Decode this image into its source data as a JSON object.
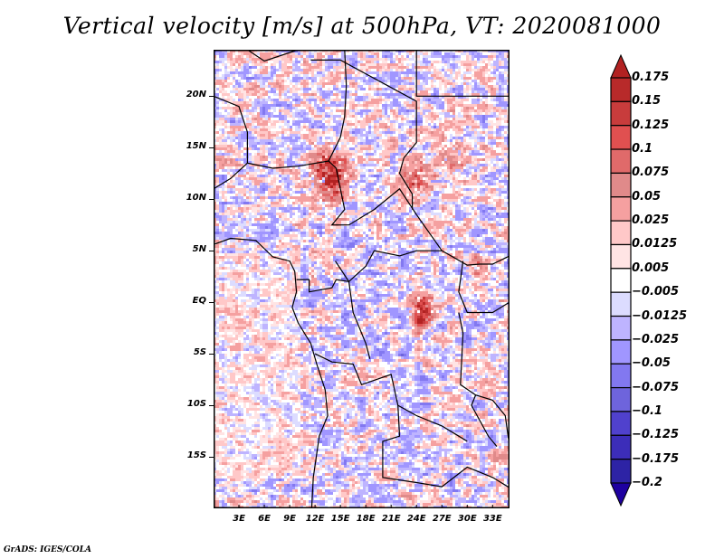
{
  "title": "Vertical velocity [m/s] at 500hPa, VT: 2020081000",
  "credit": "GrADS: IGES/COLA",
  "map": {
    "projection": "latlon",
    "lon_range": [
      0,
      35
    ],
    "lat_range": [
      -20,
      24.5
    ],
    "lat_ticks": [
      "20N",
      "15N",
      "10N",
      "5N",
      "EQ",
      "5S",
      "10S",
      "15S"
    ],
    "lat_values": [
      20,
      15,
      10,
      5,
      0,
      -5,
      -10,
      -15
    ],
    "lon_ticks": [
      "3E",
      "6E",
      "9E",
      "12E",
      "15E",
      "18E",
      "21E",
      "24E",
      "27E",
      "30E",
      "33E"
    ],
    "lon_values": [
      3,
      6,
      9,
      12,
      15,
      18,
      21,
      24,
      27,
      30,
      33
    ],
    "field": "vertical velocity at 500hPa",
    "units": "m/s",
    "valid_time": "2020081000",
    "features": {
      "strong_positive_regions": [
        "Lake Chad area (~14E, 12N)",
        "Darfur (~24E, 12N)",
        "Eastern DRC (~25E, 0)",
        "East Africa highlands (~30E, 4N)"
      ],
      "land_boundaries": "country borders and coastlines in black"
    }
  },
  "colorbar": {
    "labels": [
      "0.175",
      "0.15",
      "0.125",
      "0.1",
      "0.075",
      "0.05",
      "0.025",
      "0.0125",
      "0.005",
      "−0.005",
      "−0.0125",
      "−0.025",
      "−0.05",
      "−0.075",
      "−0.1",
      "−0.125",
      "−0.175",
      "−0.2"
    ],
    "colors": [
      "#b22222",
      "#b82a2a",
      "#c83c3c",
      "#e05050",
      "#e06a6a",
      "#e08a8a",
      "#f5a0a0",
      "#ffc8c8",
      "#ffe4e4",
      "#ffffff",
      "#dcdcff",
      "#beb4ff",
      "#a096ff",
      "#8278f0",
      "#6e64dc",
      "#5041cd",
      "#3c2db9",
      "#2d23a5",
      "#1e00a0"
    ]
  },
  "chart_data": {
    "type": "heatmap",
    "title": "Vertical velocity [m/s] at 500hPa, VT: 2020081000",
    "xlabel": "",
    "ylabel": "",
    "x_ticks": [
      "3E",
      "6E",
      "9E",
      "12E",
      "15E",
      "18E",
      "21E",
      "24E",
      "27E",
      "30E",
      "33E"
    ],
    "y_ticks": [
      "20N",
      "15N",
      "10N",
      "5N",
      "EQ",
      "5S",
      "10S",
      "15S"
    ],
    "xlim": [
      0,
      35
    ],
    "ylim": [
      -20,
      24.5
    ],
    "colorbar_levels": [
      -0.2,
      -0.175,
      -0.125,
      -0.1,
      -0.075,
      -0.05,
      -0.025,
      -0.0125,
      -0.005,
      0.005,
      0.0125,
      0.025,
      0.05,
      0.075,
      0.1,
      0.125,
      0.15,
      0.175
    ],
    "colorbar_extend": "both",
    "grid": false
  }
}
